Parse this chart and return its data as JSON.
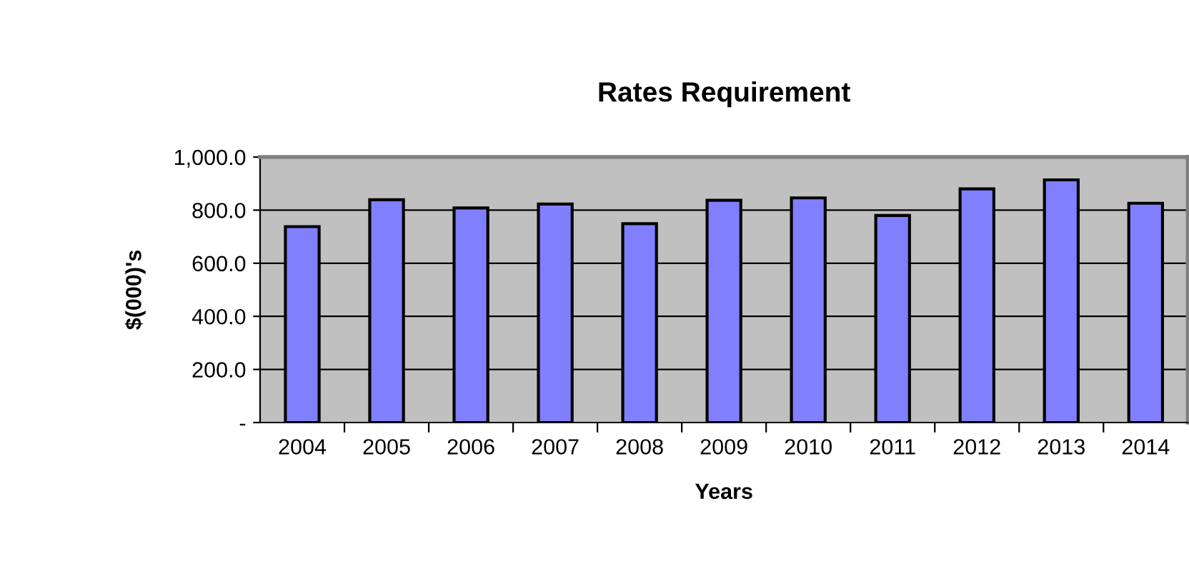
{
  "chart_data": {
    "type": "bar",
    "title": "Rates Requirement",
    "xlabel": "Years",
    "ylabel": "$(000)'s",
    "categories": [
      "2004",
      "2005",
      "2006",
      "2007",
      "2008",
      "2009",
      "2010",
      "2011",
      "2012",
      "2013",
      "2014"
    ],
    "values": [
      738,
      839,
      808,
      823,
      749,
      837,
      846,
      780,
      880,
      914,
      826
    ],
    "color": "#8080ff",
    "ylim": [
      0,
      1000
    ],
    "yticks": [
      {
        "value": 0,
        "label": "-"
      },
      {
        "value": 200,
        "label": "200.0"
      },
      {
        "value": 400,
        "label": "400.0"
      },
      {
        "value": 600,
        "label": "600.0"
      },
      {
        "value": 800,
        "label": "800.0"
      },
      {
        "value": 1000,
        "label": "1,000.0"
      }
    ],
    "grid": "y",
    "legend": false
  }
}
